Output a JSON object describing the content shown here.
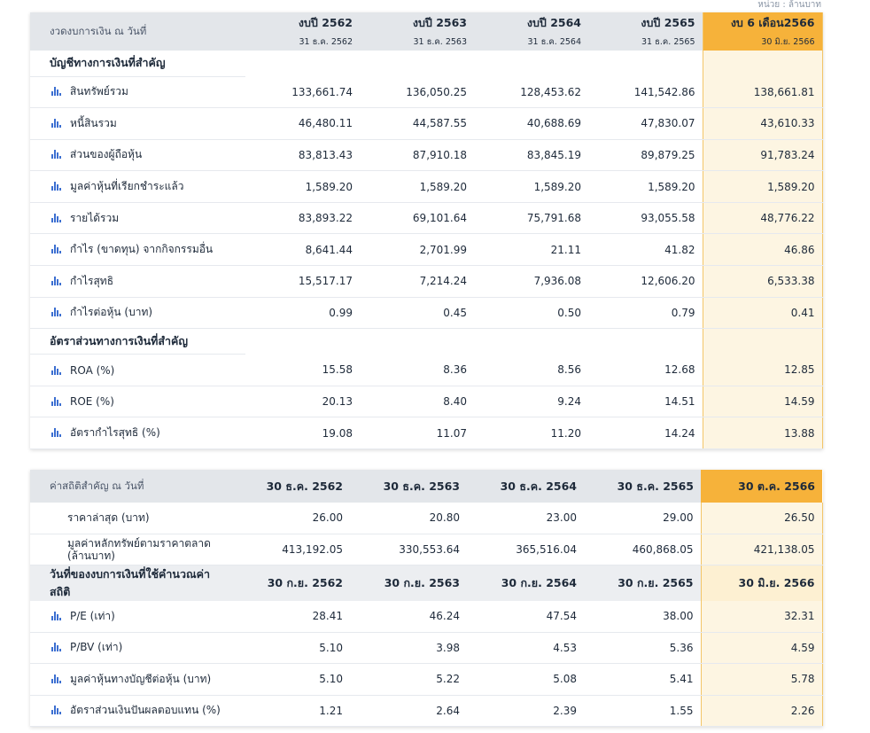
{
  "unit_note": "หน่วย : ล้านบาท",
  "table1": {
    "header_label": "งวดงบการเงิน ณ วันที่",
    "periods": [
      {
        "title": "งบปี 2562",
        "date": "31 ธ.ค. 2562"
      },
      {
        "title": "งบปี 2563",
        "date": "31 ธ.ค. 2563"
      },
      {
        "title": "งบปี 2564",
        "date": "31 ธ.ค. 2564"
      },
      {
        "title": "งบปี 2565",
        "date": "31 ธ.ค. 2565"
      },
      {
        "title": "งบ 6 เดือน2566",
        "date": "30 มิ.ย. 2566"
      }
    ],
    "section1_title": "บัญชีทางการเงินที่สำคัญ",
    "section1_rows": [
      {
        "label": "สินทรัพย์รวม",
        "values": [
          "133,661.74",
          "136,050.25",
          "128,453.62",
          "141,542.86",
          "138,661.81"
        ]
      },
      {
        "label": "หนี้สินรวม",
        "values": [
          "46,480.11",
          "44,587.55",
          "40,688.69",
          "47,830.07",
          "43,610.33"
        ]
      },
      {
        "label": "ส่วนของผู้ถือหุ้น",
        "values": [
          "83,813.43",
          "87,910.18",
          "83,845.19",
          "89,879.25",
          "91,783.24"
        ]
      },
      {
        "label": "มูลค่าหุ้นที่เรียกชำระแล้ว",
        "values": [
          "1,589.20",
          "1,589.20",
          "1,589.20",
          "1,589.20",
          "1,589.20"
        ]
      },
      {
        "label": "รายได้รวม",
        "values": [
          "83,893.22",
          "69,101.64",
          "75,791.68",
          "93,055.58",
          "48,776.22"
        ]
      },
      {
        "label": "กำไร (ขาดทุน) จากกิจกรรมอื่น",
        "values": [
          "8,641.44",
          "2,701.99",
          "21.11",
          "41.82",
          "46.86"
        ]
      },
      {
        "label": "กำไรสุทธิ",
        "values": [
          "15,517.17",
          "7,214.24",
          "7,936.08",
          "12,606.20",
          "6,533.38"
        ]
      },
      {
        "label": "กำไรต่อหุ้น (บาท)",
        "values": [
          "0.99",
          "0.45",
          "0.50",
          "0.79",
          "0.41"
        ]
      }
    ],
    "section2_title": "อัตราส่วนทางการเงินที่สำคัญ",
    "section2_rows": [
      {
        "label": "ROA (%)",
        "values": [
          "15.58",
          "8.36",
          "8.56",
          "12.68",
          "12.85"
        ]
      },
      {
        "label": "ROE (%)",
        "values": [
          "20.13",
          "8.40",
          "9.24",
          "14.51",
          "14.59"
        ]
      },
      {
        "label": "อัตรากำไรสุทธิ (%)",
        "values": [
          "19.08",
          "11.07",
          "11.20",
          "14.24",
          "13.88"
        ]
      }
    ]
  },
  "table2": {
    "header_label": "ค่าสถิติสำคัญ ณ วันที่",
    "dates": [
      "30 ธ.ค. 2562",
      "30 ธ.ค. 2563",
      "30 ธ.ค. 2564",
      "30 ธ.ค. 2565",
      "30 ต.ค. 2566"
    ],
    "price_rows": [
      {
        "label": "ราคาล่าสุด (บาท)",
        "values": [
          "26.00",
          "20.80",
          "23.00",
          "29.00",
          "26.50"
        ]
      },
      {
        "label": "มูลค่าหลักทรัพย์ตามราคาตลาด (ล้านบาท)",
        "values": [
          "413,192.05",
          "330,553.64",
          "365,516.04",
          "460,868.05",
          "421,138.05"
        ]
      }
    ],
    "calc_label": "วันที่ของงบการเงินที่ใช้คำนวณค่าสถิติ",
    "calc_dates": [
      "30 ก.ย. 2562",
      "30 ก.ย. 2563",
      "30 ก.ย. 2564",
      "30 ก.ย. 2565",
      "30 มิ.ย. 2566"
    ],
    "stat_rows": [
      {
        "label": "P/E (เท่า)",
        "values": [
          "28.41",
          "46.24",
          "47.54",
          "38.00",
          "32.31"
        ]
      },
      {
        "label": "P/BV (เท่า)",
        "values": [
          "5.10",
          "3.98",
          "4.53",
          "5.36",
          "4.59"
        ]
      },
      {
        "label": "มูลค่าหุ้นทางบัญชีต่อหุ้น (บาท)",
        "values": [
          "5.10",
          "5.22",
          "5.08",
          "5.41",
          "5.78"
        ]
      },
      {
        "label": "อัตราส่วนเงินปันผลตอบแทน (%)",
        "values": [
          "1.21",
          "2.64",
          "2.39",
          "1.55",
          "2.26"
        ]
      }
    ]
  },
  "colors": {
    "highlight": "#f6b23a",
    "highlight_bg": "#fdf5e2",
    "header_bg": "#e3e6ea",
    "icon": "#3c6fd1"
  }
}
